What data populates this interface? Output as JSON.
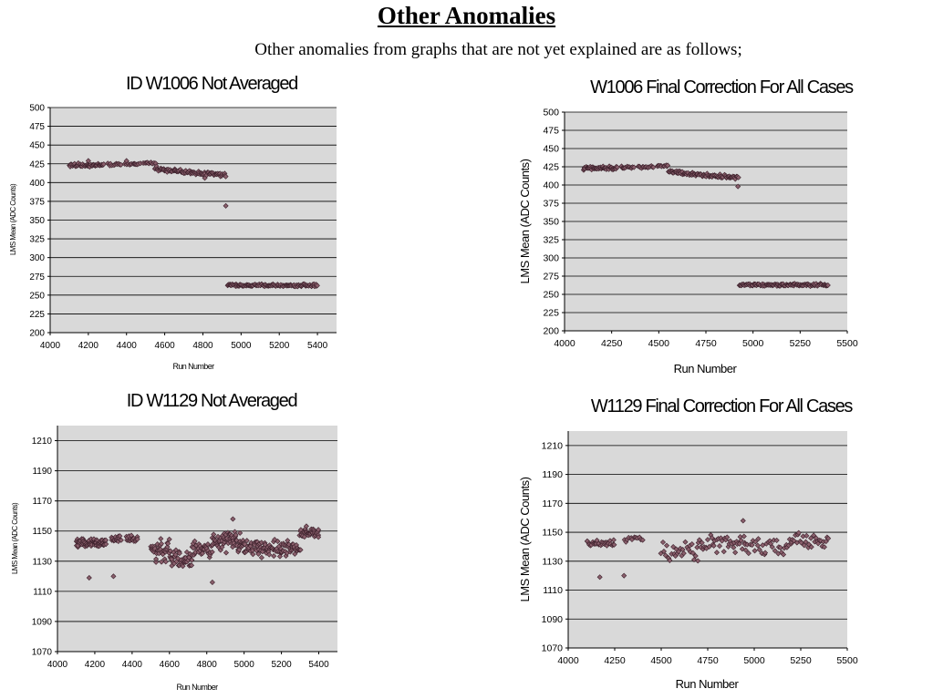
{
  "slide": {
    "title": "Other Anomalies",
    "subtitle": "Other anomalies from graphs that are not yet explained are as follows;"
  },
  "chart_data": [
    {
      "id": "c1",
      "type": "scatter",
      "title": "ID W1006 Not Averaged",
      "xlabel": "Run Number",
      "ylabel": "LMS Mean (ADC Counts)",
      "xlim": [
        4000,
        5500
      ],
      "ylim": [
        200,
        500
      ],
      "xticks": [
        4000,
        4200,
        4400,
        4600,
        4800,
        5000,
        5200,
        5400
      ],
      "yticks": [
        200,
        225,
        250,
        275,
        300,
        325,
        350,
        375,
        400,
        425,
        450,
        475,
        500
      ],
      "grid": true,
      "legend": "none",
      "marker_color": "#8a5f6c",
      "clusters": [
        {
          "x": [
            4100,
            4280
          ],
          "y": 423,
          "spread": 3,
          "n": 55
        },
        {
          "x": [
            4300,
            4370
          ],
          "y": 424,
          "spread": 2,
          "n": 12
        },
        {
          "x": [
            4390,
            4470
          ],
          "y": 425,
          "spread": 2,
          "n": 14
        },
        {
          "x": [
            4490,
            4550
          ],
          "y": 426,
          "spread": 2,
          "n": 10
        },
        {
          "x": [
            4550,
            4700
          ],
          "y": [
            419,
            414
          ],
          "spread": 3,
          "n": 40
        },
        {
          "x": [
            4700,
            4920
          ],
          "y": [
            414,
            410
          ],
          "spread": 3,
          "n": 55
        },
        {
          "x": [
            4930,
            5400
          ],
          "y": 263,
          "spread": 2,
          "n": 110
        }
      ],
      "outliers": [
        [
          4200,
          429
        ],
        [
          4400,
          429
        ],
        [
          4810,
          406
        ],
        [
          4920,
          369
        ]
      ]
    },
    {
      "id": "c2",
      "type": "scatter",
      "title": "W1006 Final Correction For All Cases",
      "xlabel": "Run Number",
      "ylabel": "LMS Mean (ADC Counts)",
      "xlim": [
        4000,
        5500
      ],
      "ylim": [
        200,
        500
      ],
      "xticks": [
        4000,
        4250,
        4500,
        4750,
        5000,
        5250,
        5500
      ],
      "yticks": [
        200,
        225,
        250,
        275,
        300,
        325,
        350,
        375,
        400,
        425,
        450,
        475,
        500
      ],
      "grid": true,
      "legend": "none",
      "marker_color": "#8a5f6c",
      "clusters": [
        {
          "x": [
            4100,
            4280
          ],
          "y": 423,
          "spread": 3,
          "n": 55
        },
        {
          "x": [
            4300,
            4370
          ],
          "y": 424,
          "spread": 2,
          "n": 12
        },
        {
          "x": [
            4390,
            4470
          ],
          "y": 425,
          "spread": 2,
          "n": 14
        },
        {
          "x": [
            4490,
            4550
          ],
          "y": 426,
          "spread": 2,
          "n": 10
        },
        {
          "x": [
            4550,
            4700
          ],
          "y": [
            419,
            414
          ],
          "spread": 3,
          "n": 40
        },
        {
          "x": [
            4700,
            4920
          ],
          "y": [
            414,
            410
          ],
          "spread": 3,
          "n": 55
        },
        {
          "x": [
            4930,
            5400
          ],
          "y": 263,
          "spread": 2,
          "n": 110
        }
      ],
      "outliers": [
        [
          4920,
          398
        ]
      ]
    },
    {
      "id": "c3",
      "type": "scatter",
      "title": "ID W1129 Not Averaged",
      "xlabel": "Run Number",
      "ylabel": "LMS Mean (ADC Counts)",
      "xlim": [
        4000,
        5500
      ],
      "ylim": [
        1070,
        1220
      ],
      "xticks": [
        4000,
        4200,
        4400,
        4600,
        4800,
        5000,
        5200,
        5400
      ],
      "yticks": [
        1070,
        1090,
        1110,
        1130,
        1150,
        1170,
        1190,
        1210
      ],
      "grid": true,
      "legend": "none",
      "marker_color": "#8a5f6c",
      "clusters": [
        {
          "x": [
            4100,
            4260
          ],
          "y": 1142,
          "spread": 3,
          "n": 70
        },
        {
          "x": [
            4290,
            4340
          ],
          "y": 1145,
          "spread": 3,
          "n": 18
        },
        {
          "x": [
            4370,
            4430
          ],
          "y": 1145,
          "spread": 3,
          "n": 18
        },
        {
          "x": [
            4500,
            4600
          ],
          "y": 1137,
          "spread": 9,
          "n": 40
        },
        {
          "x": [
            4600,
            4720
          ],
          "y": 1132,
          "spread": 7,
          "n": 40
        },
        {
          "x": [
            4720,
            4830
          ],
          "y": 1138,
          "spread": 7,
          "n": 35
        },
        {
          "x": [
            4830,
            5000
          ],
          "y": 1143,
          "spread": 8,
          "n": 70
        },
        {
          "x": [
            5000,
            5200
          ],
          "y": 1139,
          "spread": 7,
          "n": 70
        },
        {
          "x": [
            5200,
            5300
          ],
          "y": 1138,
          "spread": 6,
          "n": 35
        },
        {
          "x": [
            5300,
            5400
          ],
          "y": 1149,
          "spread": 5,
          "n": 40
        }
      ],
      "outliers": [
        [
          4170,
          1119
        ],
        [
          4300,
          1120
        ],
        [
          4830,
          1116
        ],
        [
          4940,
          1158
        ]
      ]
    },
    {
      "id": "c4",
      "type": "scatter",
      "title": "W1129 Final Correction For All Cases",
      "xlabel": "Run Number",
      "ylabel": "LMS Mean (ADC Counts)",
      "xlim": [
        4000,
        5500
      ],
      "ylim": [
        1070,
        1220
      ],
      "xticks": [
        4000,
        4250,
        4500,
        4750,
        5000,
        5250,
        5500
      ],
      "yticks": [
        1070,
        1090,
        1110,
        1130,
        1150,
        1170,
        1190,
        1210
      ],
      "grid": true,
      "legend": "none",
      "marker_color": "#8a5f6c",
      "clusters": [
        {
          "x": [
            4100,
            4250
          ],
          "y": 1142,
          "spread": 3,
          "n": 30
        },
        {
          "x": [
            4300,
            4400
          ],
          "y": 1145,
          "spread": 3,
          "n": 12
        },
        {
          "x": [
            4500,
            4700
          ],
          "y": 1136,
          "spread": 8,
          "n": 30
        },
        {
          "x": [
            4700,
            4950
          ],
          "y": 1142,
          "spread": 8,
          "n": 40
        },
        {
          "x": [
            4950,
            5200
          ],
          "y": 1140,
          "spread": 7,
          "n": 35
        },
        {
          "x": [
            5200,
            5400
          ],
          "y": 1144,
          "spread": 7,
          "n": 30
        }
      ],
      "outliers": [
        [
          4170,
          1119
        ],
        [
          4300,
          1120
        ],
        [
          4940,
          1158
        ]
      ]
    }
  ]
}
